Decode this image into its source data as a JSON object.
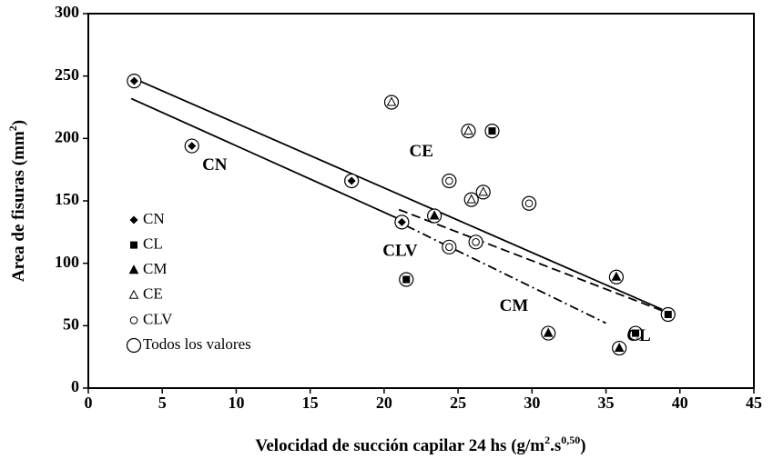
{
  "chart_data": {
    "type": "scatter",
    "x_label": [
      "Velocidad de succión capilar 24 hs (g/m",
      "2",
      ".s",
      "0,50",
      ")"
    ],
    "y_label": [
      "Area de fisuras (mm",
      "2",
      ")"
    ],
    "xlim": [
      0,
      45
    ],
    "xticks": [
      0,
      5,
      10,
      15,
      20,
      25,
      30,
      35,
      40,
      45
    ],
    "ylim": [
      0,
      300
    ],
    "yticks": [
      0,
      50,
      100,
      150,
      200,
      250,
      300
    ],
    "legend": "left",
    "series": [
      {
        "name": "CN",
        "marker": "diamond",
        "color": "#000000",
        "x": [
          3.1,
          7.0,
          17.8,
          21.2
        ],
        "values": [
          246,
          194,
          166,
          133
        ]
      },
      {
        "name": "CL",
        "marker": "square",
        "color": "#000000",
        "x": [
          21.5,
          27.3,
          37.0,
          39.2
        ],
        "values": [
          87,
          206,
          44,
          59
        ]
      },
      {
        "name": "CM",
        "marker": "triangle",
        "color": "#000000",
        "x": [
          23.4,
          31.1,
          35.7,
          35.9
        ],
        "values": [
          138,
          44,
          89,
          32
        ]
      },
      {
        "name": "CE",
        "marker": "open-triangle",
        "color": "#000000",
        "x": [
          20.5,
          25.7,
          25.9,
          26.7
        ],
        "values": [
          229,
          206,
          151,
          157
        ]
      },
      {
        "name": "CLV",
        "marker": "open-circle",
        "color": "#000000",
        "x": [
          24.4,
          24.4,
          26.2,
          29.8
        ],
        "values": [
          166,
          113,
          117,
          148
        ]
      },
      {
        "name": "Todos los valores",
        "marker": "big-circle",
        "color": "#000000",
        "x": [
          3.1,
          7.0,
          17.8,
          21.2,
          21.5,
          27.3,
          37.0,
          39.2,
          23.4,
          31.1,
          35.7,
          35.9,
          20.5,
          25.7,
          25.9,
          26.7,
          24.4,
          24.4,
          26.2,
          29.8
        ],
        "values": [
          246,
          194,
          166,
          133,
          87,
          206,
          44,
          59,
          138,
          44,
          89,
          32,
          229,
          206,
          151,
          157,
          166,
          113,
          117,
          148
        ]
      }
    ],
    "trend_lines": [
      {
        "style": "solid",
        "x": [
          2.9,
          38.8
        ],
        "values": [
          249,
          63
        ]
      },
      {
        "style": "solid",
        "x": [
          2.9,
          20.9
        ],
        "values": [
          232,
          136
        ]
      },
      {
        "style": "dashed",
        "x": [
          21.0,
          38.8
        ],
        "values": [
          143,
          62
        ]
      },
      {
        "style": "dashdot",
        "x": [
          21.5,
          35.0
        ],
        "values": [
          130,
          52
        ]
      }
    ],
    "annotations": [
      {
        "text": "CN",
        "x": 7.7,
        "y": 178
      },
      {
        "text": "CE",
        "x": 21.7,
        "y": 189
      },
      {
        "text": "CLV",
        "x": 19.9,
        "y": 109
      },
      {
        "text": "CM",
        "x": 27.8,
        "y": 65
      },
      {
        "text": "CL",
        "x": 36.4,
        "y": 41
      }
    ]
  }
}
